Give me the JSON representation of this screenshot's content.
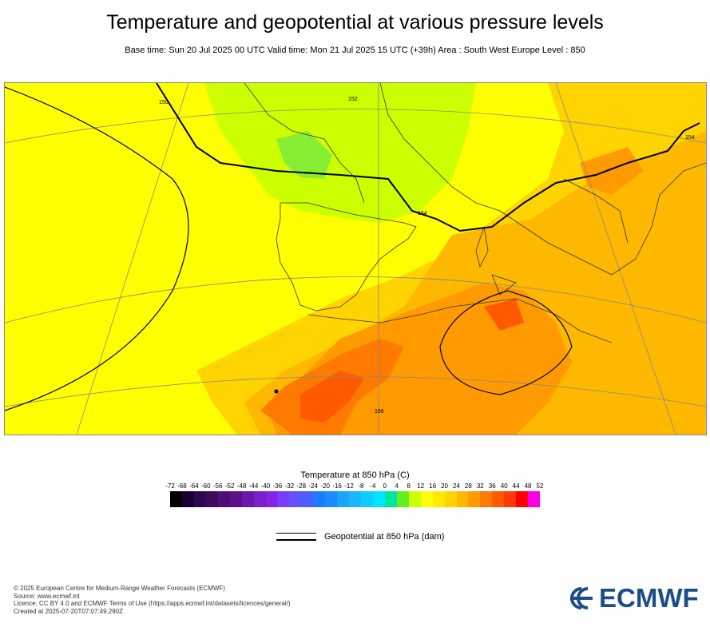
{
  "title": "Temperature and geopotential at various pressure levels",
  "subtitle": "Base time: Sun 20 Jul 2025 00 UTC Valid time: Mon 21 Jul 2025 15 UTC (+39h) Area : South West Europe Level : 850",
  "map": {
    "contour_labels": [
      "150",
      "152",
      "154",
      "156",
      "154"
    ]
  },
  "legend": {
    "title": "Temperature at 850 hPa (C)",
    "ticks": [
      "-72",
      "-68",
      "-64",
      "-60",
      "-56",
      "-52",
      "-48",
      "-44",
      "-40",
      "-36",
      "-32",
      "-28",
      "-24",
      "-20",
      "-16",
      "-12",
      "-8",
      "-4",
      "0",
      "4",
      "8",
      "12",
      "16",
      "20",
      "24",
      "28",
      "32",
      "36",
      "40",
      "44",
      "48",
      "52"
    ],
    "colors": [
      "#000000",
      "#1a0033",
      "#2d0a4e",
      "#3d0a5c",
      "#4f0d78",
      "#5e0f8c",
      "#6a1aa8",
      "#7a1fcc",
      "#8a22e6",
      "#7a3cff",
      "#6650ff",
      "#4c60ff",
      "#1e7aff",
      "#1a8cff",
      "#1aa3ff",
      "#1ab8ff",
      "#10ccff",
      "#00e5ff",
      "#00e6a0",
      "#66ee22",
      "#ccff00",
      "#ffff00",
      "#ffea00",
      "#ffd400",
      "#ffb800",
      "#ff9a00",
      "#ff7a00",
      "#ff5a00",
      "#ff3a00",
      "#ff0000",
      "#ff00e6"
    ],
    "geopotential_label": "Geopotential at 850 hPa (dam)"
  },
  "credits": {
    "line1": "© 2025 European Centre for Medium-Range Weather Forecasts (ECMWF)",
    "line2": "Source: www.ecmwf.int",
    "line3": "Licence: CC BY 4.0 and ECMWF Terms of Use (https://apps.ecmwf.int/datasets/licences/general/)",
    "line4": "Created at 2025-07-20T07:07:49.290Z"
  },
  "logo": {
    "text": "ECMWF",
    "color": "#1b4e87"
  }
}
